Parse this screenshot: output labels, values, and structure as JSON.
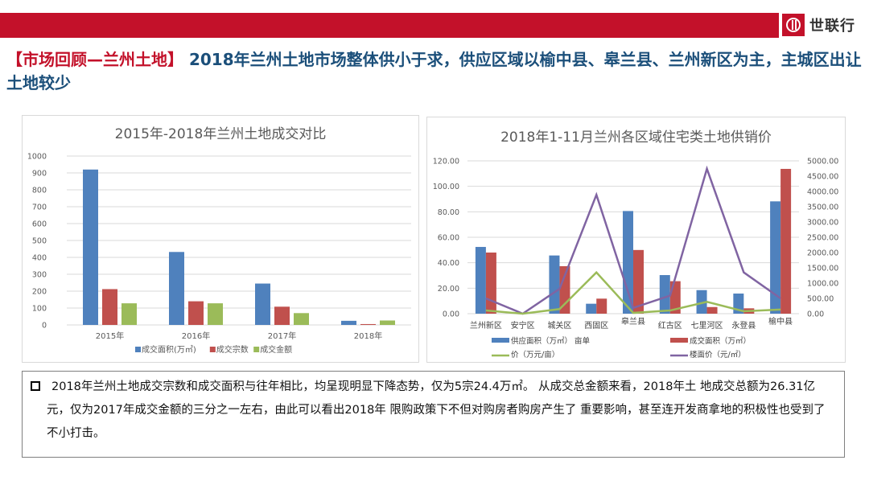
{
  "header": {
    "brand_color": "#c3112a",
    "logo_icon": "shilianhang-logo",
    "logo_text": "世联行"
  },
  "headline": {
    "tag": "【市场回顾—兰州土地】",
    "title": " 2018年兰州土地市场整体供小于求，供应区域以榆中县、皋兰县、兰州新区为主，主城区出让土地较少",
    "tag_color": "#c3112a",
    "title_color": "#1b4f7a"
  },
  "left_chart": {
    "title": "2015年-2018年兰州土地成交对比",
    "y_ticks": [
      "0",
      "100",
      "200",
      "300",
      "400",
      "500",
      "600",
      "700",
      "800",
      "900",
      "1000"
    ],
    "categories": [
      "2015年",
      "2016年",
      "2017年",
      "2018年"
    ],
    "legend": [
      {
        "label": "成交面积(万㎡)",
        "color": "#4f81bd"
      },
      {
        "label": "成交宗数",
        "color": "#c0504d"
      },
      {
        "label": "成交金额",
        "color": "#9bbb59"
      }
    ]
  },
  "right_chart": {
    "title": "2018年1-11月兰州各区域住宅类土地供销价",
    "y_left_ticks": [
      "0.00",
      "20.00",
      "40.00",
      "60.00",
      "80.00",
      "100.00",
      "120.00"
    ],
    "y_right_ticks": [
      "0.00",
      "500.00",
      "1000.00",
      "1500.00",
      "2000.00",
      "2500.00",
      "3000.00",
      "3500.00",
      "4000.00",
      "4500.00",
      "5000.00"
    ],
    "categories": [
      "兰州新区",
      "安宁区",
      "城关区",
      "西固区",
      "皋兰县",
      "红古区",
      "七里河区",
      "永登县",
      "榆中县"
    ],
    "legend": [
      {
        "label": "供应面积（万㎡）",
        "color": "#4f81bd",
        "type": "bar"
      },
      {
        "label": "成交面积（万㎡）",
        "color": "#c0504d",
        "type": "bar"
      },
      {
        "label": "亩单价（万元/亩）",
        "color": "#9bbb59",
        "type": "line"
      },
      {
        "label": "楼面价（元/㎡）",
        "color": "#8064a2",
        "type": "line"
      }
    ],
    "legend_row1_left": "供应面积（万㎡） 亩单",
    "legend_row1_right": "成交面积（万㎡）",
    "legend_row2_left": "价（万元/亩）",
    "legend_row2_right": "楼面价（元/㎡）"
  },
  "summary": {
    "bullet_icon": "hollow-square-bullet",
    "text": "2018年兰州土地成交宗数和成交面积与往年相比，均呈现明显下降态势，仅为5宗24.4万㎡。 从成交总金额来看，2018年土 地成交总额为26.31亿元，仅为2017年成交金额的三分之一左右，由此可以看出2018年 限购政策下不但对购房者购房产生了 重要影响，甚至连开发商拿地的积极性也受到了不小打击。"
  },
  "chart_data": [
    {
      "type": "bar",
      "title": "2015年-2018年兰州土地成交对比",
      "categories": [
        "2015年",
        "2016年",
        "2017年",
        "2018年"
      ],
      "series": [
        {
          "name": "成交面积(万㎡)",
          "values": [
            920,
            432,
            245,
            24.4
          ]
        },
        {
          "name": "成交宗数",
          "values": [
            212,
            140,
            108,
            5
          ]
        },
        {
          "name": "成交金额",
          "values": [
            128,
            128,
            70,
            26.31
          ]
        }
      ],
      "xlabel": "",
      "ylabel": "",
      "ylim": [
        0,
        1000
      ],
      "grid": true,
      "legend_position": "bottom"
    },
    {
      "type": "bar",
      "title": "2018年1-11月兰州各区域住宅类土地供销价",
      "categories": [
        "兰州新区",
        "安宁区",
        "城关区",
        "西固区",
        "皋兰县",
        "红古区",
        "七里河区",
        "永登县",
        "榆中县"
      ],
      "series": [
        {
          "name": "供应面积（万㎡）",
          "type": "bar",
          "axis": "left",
          "values": [
            52.4,
            0,
            45.7,
            7.8,
            80.6,
            30.3,
            18.5,
            15.8,
            88.2
          ]
        },
        {
          "name": "成交面积（万㎡）",
          "type": "bar",
          "axis": "left",
          "values": [
            48.0,
            0,
            37.3,
            11.8,
            50.0,
            25.5,
            5.2,
            4.2,
            113.7
          ]
        },
        {
          "name": "亩单价（万元/亩）",
          "type": "line",
          "axis": "left",
          "values": [
            2.5,
            0,
            3.6,
            32.4,
            0.6,
            2.5,
            9.3,
            1.9,
            3.2
          ]
        },
        {
          "name": "楼面价（元/㎡）",
          "type": "line",
          "axis": "right",
          "values": [
            500,
            0,
            815,
            3890,
            190,
            590,
            4740,
            1350,
            500
          ]
        }
      ],
      "ylim_left": [
        0,
        120
      ],
      "ylim_right": [
        0,
        5000
      ],
      "grid": true,
      "legend_position": "bottom"
    }
  ]
}
